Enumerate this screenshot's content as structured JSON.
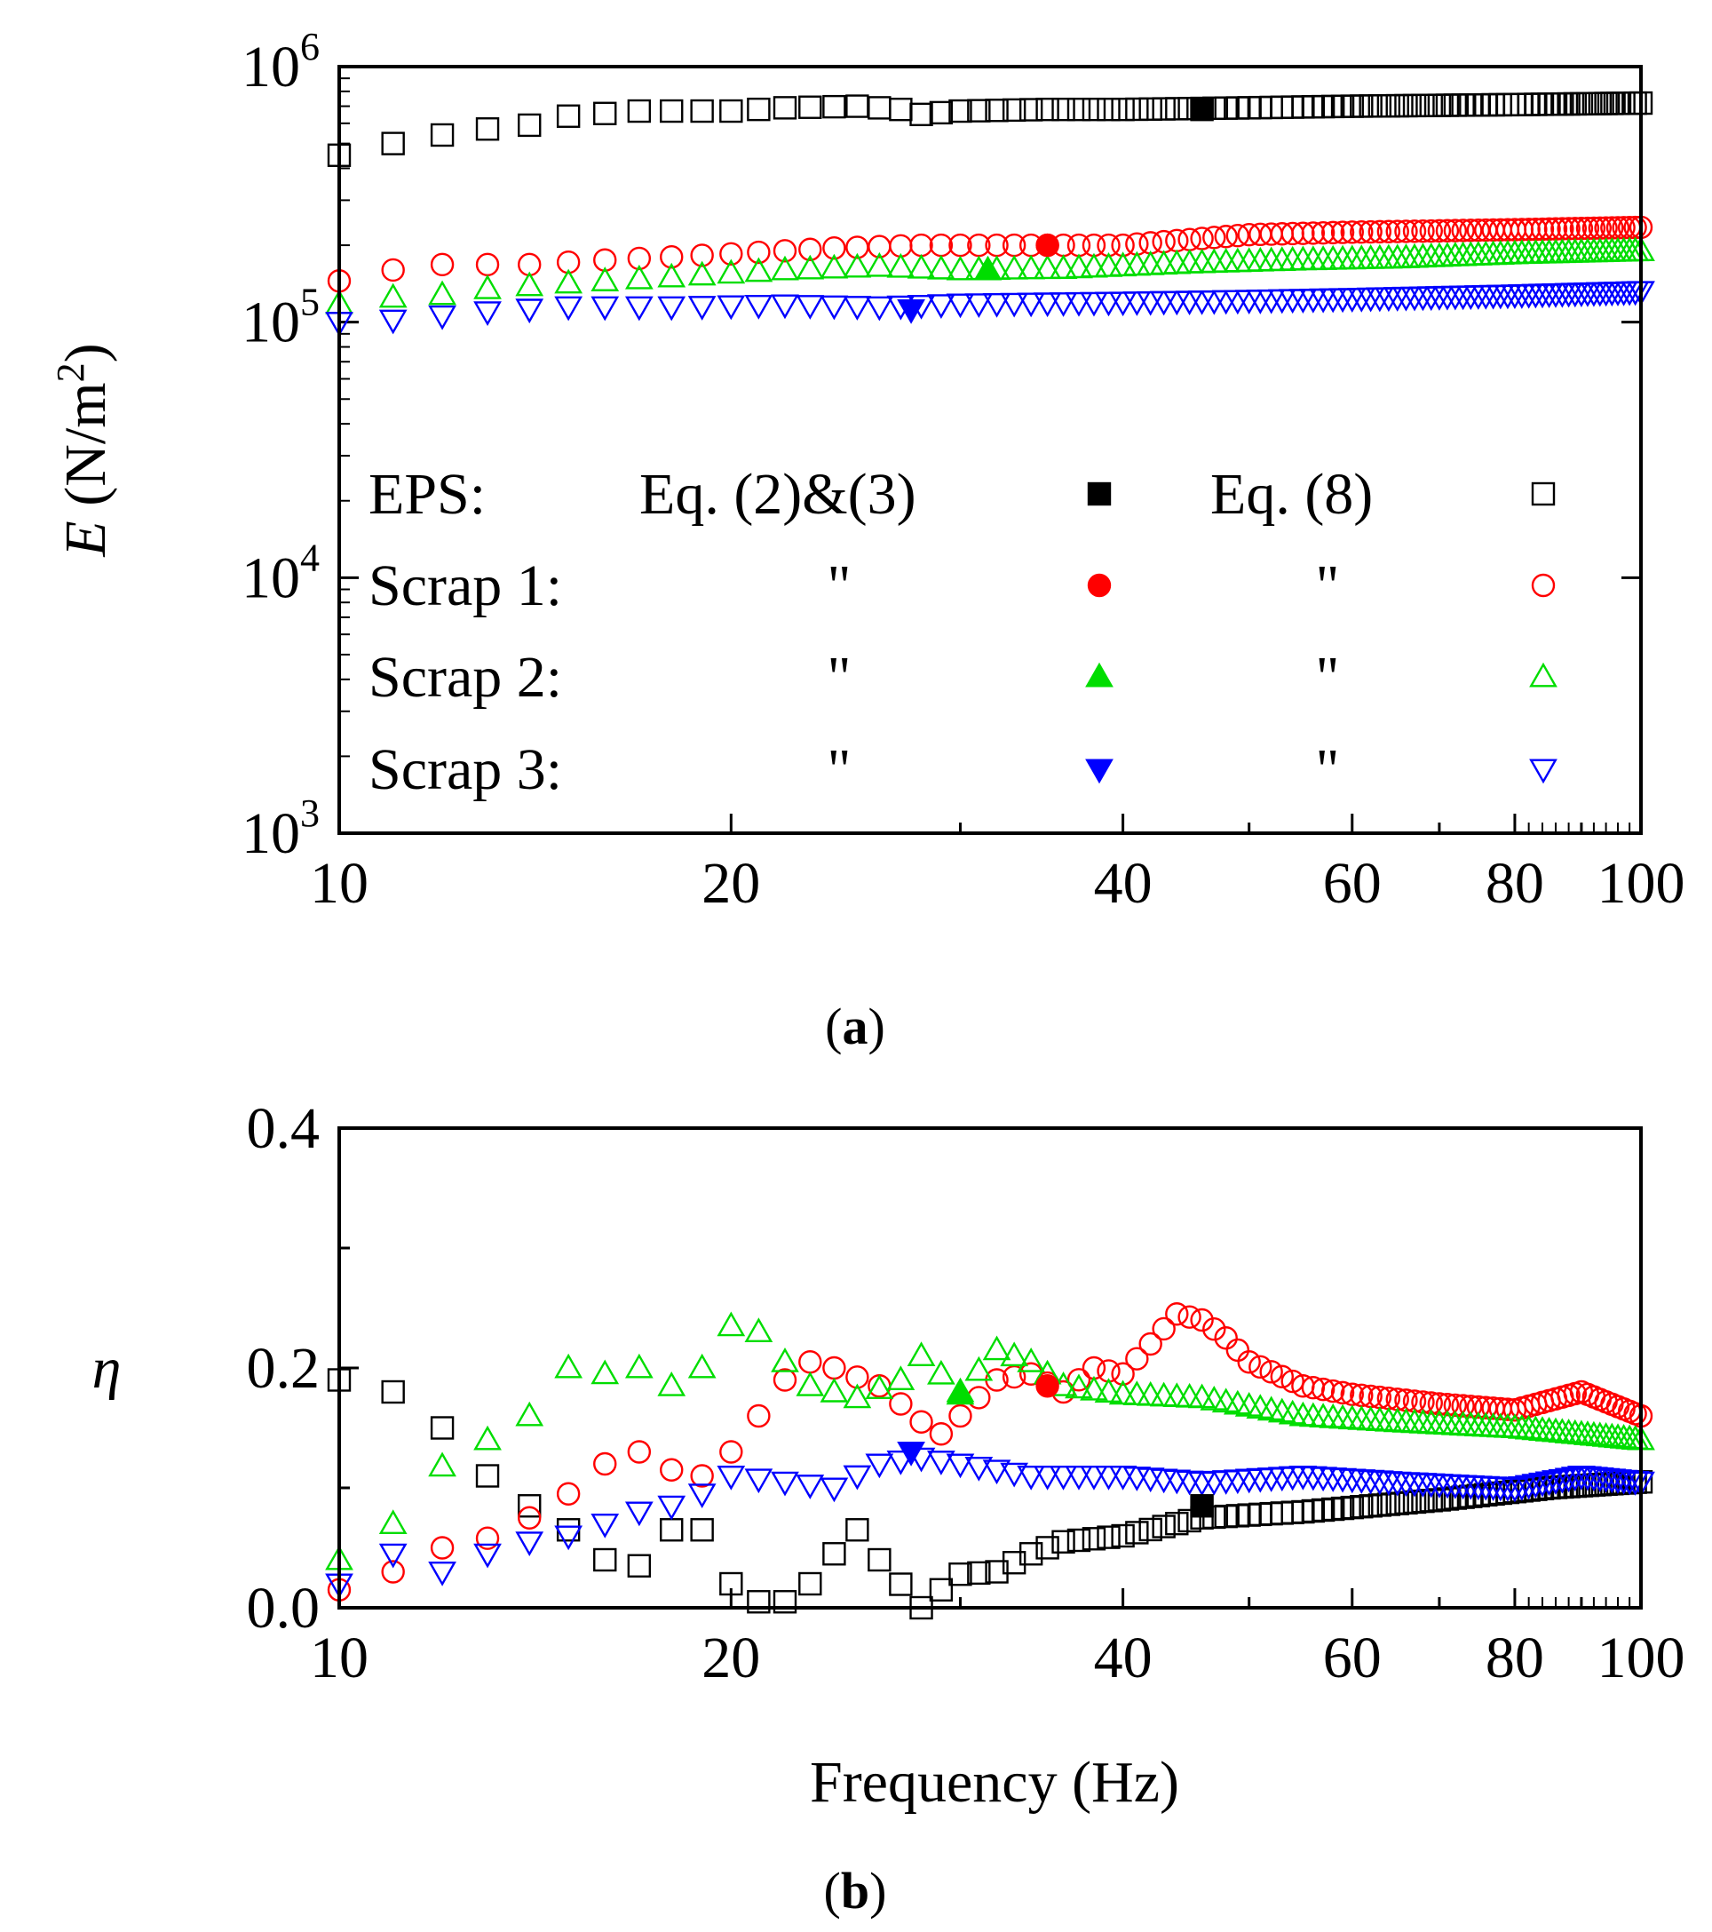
{
  "chart_data": [
    {
      "type": "scatter",
      "panel_label": "(a)",
      "panel_letter": "a",
      "xscale": "log",
      "yscale": "log",
      "xlim": [
        10,
        100
      ],
      "ylim": [
        1000,
        1000000
      ],
      "xlabel": "",
      "ylabel_main": "E",
      "ylabel_unit_prefix": "(N/m",
      "ylabel_unit_sup": "2",
      "ylabel_unit_suffix": ")",
      "xticks": [
        10,
        20,
        40,
        60,
        80,
        100
      ],
      "xtick_labels": [
        "10",
        "20",
        "40",
        "60",
        "80",
        "100"
      ],
      "yticks": [
        {
          "base": "10",
          "exp": "3"
        },
        {
          "base": "10",
          "exp": "4"
        },
        {
          "base": "10",
          "exp": "5"
        },
        {
          "base": "10",
          "exp": "6"
        }
      ],
      "legend": {
        "position": "inside-lower",
        "col_header_1": "Eq. (2)&(3)",
        "col_header_2": "Eq. (8)",
        "ditto": "\"",
        "rows": [
          {
            "label": "EPS:",
            "color": "#000000",
            "marker": "square"
          },
          {
            "label": "Scrap 1:",
            "color": "#ff0000",
            "marker": "circle"
          },
          {
            "label": "Scrap 2:",
            "color": "#00dd00",
            "marker": "triangle-up"
          },
          {
            "label": "Scrap 3:",
            "color": "#0000ff",
            "marker": "triangle-down"
          }
        ]
      },
      "series": [
        {
          "name": "EPS Eq. (8)",
          "color": "#000000",
          "marker": "square",
          "filled": false,
          "curve": "E_eps"
        },
        {
          "name": "Scrap 1 Eq. (8)",
          "color": "#ff0000",
          "marker": "circle",
          "filled": false,
          "curve": "E_s1"
        },
        {
          "name": "Scrap 2 Eq. (8)",
          "color": "#00dd00",
          "marker": "triangle-up",
          "filled": false,
          "curve": "E_s2"
        },
        {
          "name": "Scrap 3 Eq. (8)",
          "color": "#0000ff",
          "marker": "triangle-down",
          "filled": false,
          "curve": "E_s3"
        },
        {
          "name": "EPS Eq. (2)&(3)",
          "color": "#000000",
          "marker": "square",
          "filled": true,
          "x": [
            46
          ],
          "y": [
            680000
          ]
        },
        {
          "name": "Scrap 1 Eq. (2)&(3)",
          "color": "#ff0000",
          "marker": "circle",
          "filled": true,
          "x": [
            35
          ],
          "y": [
            200000
          ]
        },
        {
          "name": "Scrap 2 Eq. (2)&(3)",
          "color": "#00dd00",
          "marker": "triangle-up",
          "filled": true,
          "x": [
            31.5
          ],
          "y": [
            160000
          ]
        },
        {
          "name": "Scrap 3 Eq. (2)&(3)",
          "color": "#0000ff",
          "marker": "triangle-down",
          "filled": true,
          "x": [
            27.5
          ],
          "y": [
            112000
          ]
        }
      ],
      "curves": {
        "E_eps": [
          [
            10,
            450000
          ],
          [
            11,
            500000
          ],
          [
            12,
            540000
          ],
          [
            13,
            570000
          ],
          [
            14,
            590000
          ],
          [
            15,
            640000
          ],
          [
            17,
            670000
          ],
          [
            20,
            670000
          ],
          [
            22,
            690000
          ],
          [
            25,
            700000
          ],
          [
            27,
            680000
          ],
          [
            28,
            650000
          ],
          [
            30,
            670000
          ],
          [
            35,
            680000
          ],
          [
            40,
            680000
          ],
          [
            50,
            690000
          ],
          [
            60,
            700000
          ],
          [
            80,
            710000
          ],
          [
            100,
            720000
          ]
        ],
        "E_s1": [
          [
            10,
            145000
          ],
          [
            11,
            160000
          ],
          [
            12,
            168000
          ],
          [
            13,
            168000
          ],
          [
            14,
            168000
          ],
          [
            16,
            175000
          ],
          [
            18,
            180000
          ],
          [
            20,
            185000
          ],
          [
            24,
            195000
          ],
          [
            28,
            200000
          ],
          [
            34,
            200000
          ],
          [
            40,
            200000
          ],
          [
            50,
            220000
          ],
          [
            60,
            225000
          ],
          [
            80,
            230000
          ],
          [
            100,
            235000
          ]
        ],
        "E_s2": [
          [
            10,
            118000
          ],
          [
            11,
            125000
          ],
          [
            12,
            128000
          ],
          [
            13,
            135000
          ],
          [
            15,
            142000
          ],
          [
            18,
            150000
          ],
          [
            22,
            160000
          ],
          [
            26,
            165000
          ],
          [
            30,
            160000
          ],
          [
            36,
            162000
          ],
          [
            45,
            170000
          ],
          [
            55,
            175000
          ],
          [
            65,
            178000
          ],
          [
            80,
            185000
          ],
          [
            100,
            190000
          ]
        ],
        "E_s3": [
          [
            10,
            100000
          ],
          [
            11,
            102000
          ],
          [
            12,
            106000
          ],
          [
            13,
            110000
          ],
          [
            15,
            115000
          ],
          [
            18,
            115000
          ],
          [
            22,
            117000
          ],
          [
            26,
            115000
          ],
          [
            30,
            118000
          ],
          [
            40,
            120000
          ],
          [
            50,
            122000
          ],
          [
            60,
            124000
          ],
          [
            80,
            128000
          ],
          [
            100,
            132000
          ]
        ]
      }
    },
    {
      "type": "scatter",
      "panel_label": "(b)",
      "panel_letter": "b",
      "xscale": "log",
      "yscale": "linear",
      "xlim": [
        10,
        100
      ],
      "ylim": [
        0,
        0.4
      ],
      "xlabel": "Frequency (Hz)",
      "ylabel": "η",
      "xticks": [
        10,
        20,
        40,
        60,
        80,
        100
      ],
      "xtick_labels": [
        "10",
        "20",
        "40",
        "60",
        "80",
        "100"
      ],
      "yticks": [
        0,
        0.2,
        0.4
      ],
      "ytick_labels": [
        "0.0",
        "0.2",
        "0.4"
      ],
      "series": [
        {
          "name": "EPS Eq. (8)",
          "color": "#000000",
          "marker": "square",
          "filled": false,
          "curve": "n_eps"
        },
        {
          "name": "Scrap 1 Eq. (8)",
          "color": "#ff0000",
          "marker": "circle",
          "filled": false,
          "curve": "n_s1"
        },
        {
          "name": "Scrap 2 Eq. (8)",
          "color": "#00dd00",
          "marker": "triangle-up",
          "filled": false,
          "curve": "n_s2"
        },
        {
          "name": "Scrap 3 Eq. (8)",
          "color": "#0000ff",
          "marker": "triangle-down",
          "filled": false,
          "curve": "n_s3"
        },
        {
          "name": "EPS Eq. (2)&(3)",
          "color": "#000000",
          "marker": "square",
          "filled": true,
          "x": [
            46
          ],
          "y": [
            0.085
          ]
        },
        {
          "name": "Scrap 1 Eq. (2)&(3)",
          "color": "#ff0000",
          "marker": "circle",
          "filled": true,
          "x": [
            35
          ],
          "y": [
            0.185
          ]
        },
        {
          "name": "Scrap 2 Eq. (2)&(3)",
          "color": "#00dd00",
          "marker": "triangle-up",
          "filled": true,
          "x": [
            30
          ],
          "y": [
            0.178
          ]
        },
        {
          "name": "Scrap 3 Eq. (2)&(3)",
          "color": "#0000ff",
          "marker": "triangle-down",
          "filled": true,
          "x": [
            27.5
          ],
          "y": [
            0.13
          ]
        }
      ],
      "curves": {
        "n_eps": [
          [
            10,
            0.19
          ],
          [
            11,
            0.18
          ],
          [
            12,
            0.15
          ],
          [
            13,
            0.11
          ],
          [
            14,
            0.085
          ],
          [
            15,
            0.065
          ],
          [
            16,
            0.04
          ],
          [
            17,
            0.035
          ],
          [
            18,
            0.065
          ],
          [
            19,
            0.065
          ],
          [
            20,
            0.02
          ],
          [
            21,
            0.005
          ],
          [
            22,
            0.005
          ],
          [
            23,
            0.02
          ],
          [
            24,
            0.045
          ],
          [
            25,
            0.065
          ],
          [
            26,
            0.04
          ],
          [
            28,
            0.0
          ],
          [
            29,
            0.015
          ],
          [
            30,
            0.028
          ],
          [
            32,
            0.03
          ],
          [
            34,
            0.045
          ],
          [
            36,
            0.055
          ],
          [
            40,
            0.06
          ],
          [
            46,
            0.075
          ],
          [
            55,
            0.08
          ],
          [
            70,
            0.09
          ],
          [
            85,
            0.1
          ],
          [
            100,
            0.105
          ]
        ],
        "n_s1": [
          [
            10,
            0.015
          ],
          [
            11,
            0.03
          ],
          [
            12,
            0.05
          ],
          [
            13,
            0.058
          ],
          [
            14,
            0.075
          ],
          [
            15,
            0.095
          ],
          [
            16,
            0.12
          ],
          [
            17,
            0.13
          ],
          [
            18,
            0.115
          ],
          [
            19,
            0.11
          ],
          [
            20,
            0.13
          ],
          [
            21,
            0.16
          ],
          [
            22,
            0.19
          ],
          [
            23,
            0.205
          ],
          [
            24,
            0.2
          ],
          [
            26,
            0.185
          ],
          [
            27,
            0.17
          ],
          [
            28,
            0.155
          ],
          [
            29,
            0.145
          ],
          [
            30,
            0.16
          ],
          [
            32,
            0.19
          ],
          [
            34,
            0.195
          ],
          [
            36,
            0.18
          ],
          [
            38,
            0.2
          ],
          [
            40,
            0.195
          ],
          [
            42,
            0.22
          ],
          [
            44,
            0.245
          ],
          [
            46,
            0.24
          ],
          [
            48,
            0.225
          ],
          [
            50,
            0.205
          ],
          [
            55,
            0.185
          ],
          [
            60,
            0.178
          ],
          [
            70,
            0.17
          ],
          [
            80,
            0.165
          ],
          [
            90,
            0.18
          ],
          [
            100,
            0.16
          ]
        ],
        "n_s2": [
          [
            10,
            0.04
          ],
          [
            11,
            0.07
          ],
          [
            12,
            0.118
          ],
          [
            13,
            0.14
          ],
          [
            14,
            0.16
          ],
          [
            15,
            0.2
          ],
          [
            16,
            0.195
          ],
          [
            17,
            0.2
          ],
          [
            18,
            0.185
          ],
          [
            19,
            0.2
          ],
          [
            20,
            0.235
          ],
          [
            21,
            0.23
          ],
          [
            22,
            0.205
          ],
          [
            23,
            0.185
          ],
          [
            25,
            0.175
          ],
          [
            27,
            0.19
          ],
          [
            28,
            0.21
          ],
          [
            30,
            0.18
          ],
          [
            32,
            0.215
          ],
          [
            34,
            0.205
          ],
          [
            36,
            0.185
          ],
          [
            40,
            0.178
          ],
          [
            46,
            0.175
          ],
          [
            55,
            0.16
          ],
          [
            65,
            0.155
          ],
          [
            80,
            0.15
          ],
          [
            100,
            0.14
          ]
        ],
        "n_s3": [
          [
            10,
            0.02
          ],
          [
            11,
            0.045
          ],
          [
            12,
            0.03
          ],
          [
            13,
            0.045
          ],
          [
            14,
            0.055
          ],
          [
            15,
            0.06
          ],
          [
            16,
            0.07
          ],
          [
            17,
            0.08
          ],
          [
            18,
            0.085
          ],
          [
            19,
            0.095
          ],
          [
            20,
            0.11
          ],
          [
            22,
            0.105
          ],
          [
            24,
            0.1
          ],
          [
            26,
            0.12
          ],
          [
            28,
            0.125
          ],
          [
            30,
            0.12
          ],
          [
            34,
            0.11
          ],
          [
            40,
            0.11
          ],
          [
            46,
            0.105
          ],
          [
            55,
            0.11
          ],
          [
            65,
            0.105
          ],
          [
            80,
            0.1
          ],
          [
            90,
            0.11
          ],
          [
            100,
            0.105
          ]
        ]
      }
    }
  ]
}
